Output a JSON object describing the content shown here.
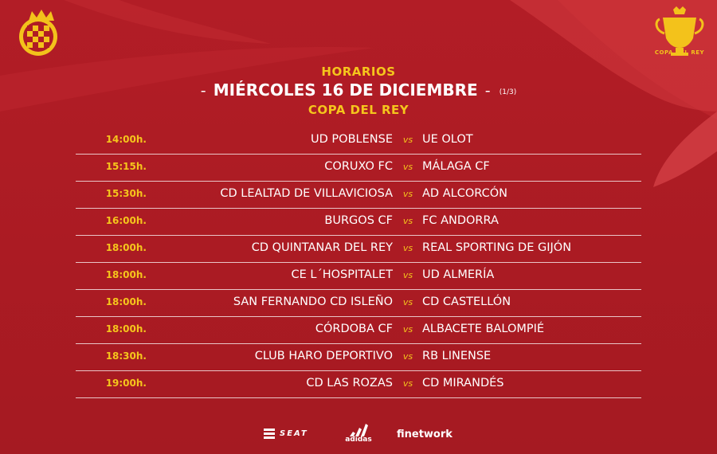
{
  "header": {
    "label": "HORARIOS",
    "dash_left": "-",
    "date": "MIÉRCOLES 16 DE DICIEMBRE",
    "dash_right": "-",
    "page_indicator": "(1/3)",
    "competition": "COPA DEL REY"
  },
  "logos": {
    "federation_icon": "rfef-crest-icon",
    "cup_icon": "copa-del-rey-trophy-icon",
    "cup_text": "COPA DEL REY"
  },
  "colors": {
    "background": "#b01c24",
    "accent_yellow": "#f5c51c",
    "text_white": "#ffffff"
  },
  "vs_label": "vs",
  "matches": [
    {
      "time": "14:00h.",
      "home": "UD POBLENSE",
      "away": "UE OLOT"
    },
    {
      "time": "15:15h.",
      "home": "CORUXO FC",
      "away": "MÁLAGA CF"
    },
    {
      "time": "15:30h.",
      "home": "CD LEALTAD DE VILLAVICIOSA",
      "away": "AD ALCORCÓN"
    },
    {
      "time": "16:00h.",
      "home": "BURGOS CF",
      "away": "FC ANDORRA"
    },
    {
      "time": "18:00h.",
      "home": "CD QUINTANAR DEL REY",
      "away": "REAL SPORTING DE GIJÓN"
    },
    {
      "time": "18:00h.",
      "home": "CE L´HOSPITALET",
      "away": "UD ALMERÍA"
    },
    {
      "time": "18:00h.",
      "home": "SAN FERNANDO CD ISLEÑO",
      "away": "CD CASTELLÓN"
    },
    {
      "time": "18:00h.",
      "home": "CÓRDOBA CF",
      "away": "ALBACETE BALOMPIÉ"
    },
    {
      "time": "18:30h.",
      "home": "CLUB HARO DEPORTIVO",
      "away": "RB LINENSE"
    },
    {
      "time": "19:00h.",
      "home": "CD LAS ROZAS",
      "away": "CD MIRANDÉS"
    }
  ],
  "sponsors": {
    "seat": "SEAT",
    "adidas": "adidas",
    "finetwork": "finetwork"
  }
}
